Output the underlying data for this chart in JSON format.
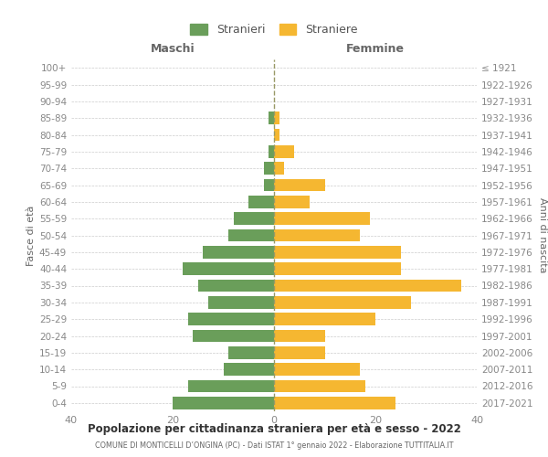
{
  "age_groups": [
    "0-4",
    "5-9",
    "10-14",
    "15-19",
    "20-24",
    "25-29",
    "30-34",
    "35-39",
    "40-44",
    "45-49",
    "50-54",
    "55-59",
    "60-64",
    "65-69",
    "70-74",
    "75-79",
    "80-84",
    "85-89",
    "90-94",
    "95-99",
    "100+"
  ],
  "birth_years": [
    "2017-2021",
    "2012-2016",
    "2007-2011",
    "2002-2006",
    "1997-2001",
    "1992-1996",
    "1987-1991",
    "1982-1986",
    "1977-1981",
    "1972-1976",
    "1967-1971",
    "1962-1966",
    "1957-1961",
    "1952-1956",
    "1947-1951",
    "1942-1946",
    "1937-1941",
    "1932-1936",
    "1927-1931",
    "1922-1926",
    "≤ 1921"
  ],
  "maschi": [
    20,
    17,
    10,
    9,
    16,
    17,
    13,
    15,
    18,
    14,
    9,
    8,
    5,
    2,
    2,
    1,
    0,
    1,
    0,
    0,
    0
  ],
  "femmine": [
    24,
    18,
    17,
    10,
    10,
    20,
    27,
    37,
    25,
    25,
    17,
    19,
    7,
    10,
    2,
    4,
    1,
    1,
    0,
    0,
    0
  ],
  "color_maschi": "#6a9e5a",
  "color_femmine": "#f5b731",
  "color_dashed_line": "#999966",
  "xlim": 40,
  "title": "Popolazione per cittadinanza straniera per età e sesso - 2022",
  "subtitle": "COMUNE DI MONTICELLI D’ONGINA (PC) - Dati ISTAT 1° gennaio 2022 - Elaborazione TUTTITALIA.IT",
  "legend_maschi": "Stranieri",
  "legend_femmine": "Straniere",
  "xlabel_left": "Maschi",
  "xlabel_right": "Femmine",
  "ylabel_left": "Fasce di età",
  "ylabel_right": "Anni di nascita",
  "background_color": "#ffffff",
  "grid_color": "#cccccc",
  "tick_color": "#888888",
  "bar_height": 0.75
}
